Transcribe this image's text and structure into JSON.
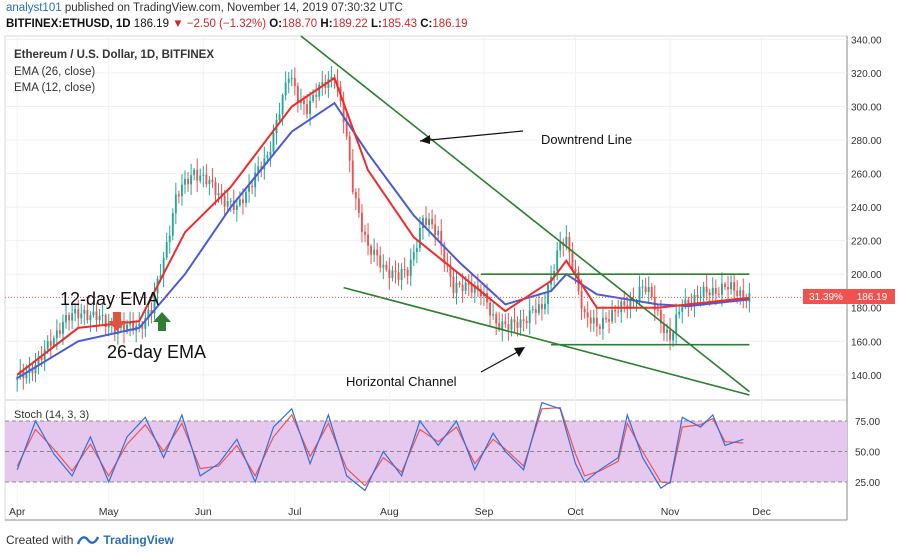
{
  "header": {
    "user": "analyst101",
    "published": "published on TradingView.com, November 14, 2019 07:30:32 UTC",
    "symbol": "BITFINEX:ETHUSD, 1D",
    "last": "186.19",
    "change": "▼ −2.50 (−1.32%)",
    "o_label": "O:",
    "o_value": "188.70",
    "h_label": "H:",
    "h_value": "189.22",
    "l_label": "L:",
    "l_value": "185.43",
    "c_label": "C:",
    "c_value": "186.19"
  },
  "legend": {
    "instrument": "Ethereum / U.S. Dollar, 1D, BITFINEX",
    "ema26": "EMA (26, close)",
    "ema12": "EMA (12, close)"
  },
  "annotations": {
    "downtrend": "Downtrend Line",
    "channel": "Horizontal Channel",
    "ema12": "12-day EMA",
    "ema26": "26-day EMA"
  },
  "price_tags": {
    "percent": "31.39%",
    "price": "186.19"
  },
  "stoch": {
    "label": "Stoch (14, 3, 3)",
    "levels": [
      75,
      50,
      25
    ],
    "tick_labels": [
      "75.00",
      "50.00",
      "25.00"
    ]
  },
  "colors": {
    "up": "#26a69a",
    "down": "#ef5350",
    "ema12": "#ef2b2b",
    "ema26": "#4a5bd4",
    "trend": "#2e7d32",
    "stochK": "#2f6fe0",
    "stochD": "#ef5350",
    "stochBand": "#e6c8ef"
  },
  "footer": {
    "created": "Created with",
    "brand": "TradingView"
  },
  "chart_data": {
    "type": "candlestick",
    "ylim": [
      125,
      342
    ],
    "yticks": [
      140,
      160,
      180,
      200,
      220,
      240,
      260,
      280,
      300,
      320,
      340
    ],
    "ytick_labels": [
      "140.00",
      "160.00",
      "180.00",
      "200.00",
      "220.00",
      "240.00",
      "260.00",
      "280.00",
      "300.00",
      "320.00",
      "340.00"
    ],
    "xticks": [
      "Apr",
      "May",
      "Jun",
      "Jul",
      "Aug",
      "Sep",
      "Oct",
      "Nov",
      "Dec"
    ],
    "xtick_days": [
      0,
      30,
      61,
      91,
      122,
      153,
      183,
      214,
      244
    ],
    "x_domain_days": [
      -4,
      272
    ],
    "close_series": [
      [
        0,
        137
      ],
      [
        8,
        150
      ],
      [
        15,
        172
      ],
      [
        22,
        178
      ],
      [
        30,
        170
      ],
      [
        35,
        167
      ],
      [
        40,
        170
      ],
      [
        44,
        178
      ],
      [
        48,
        210
      ],
      [
        52,
        245
      ],
      [
        58,
        262
      ],
      [
        65,
        250
      ],
      [
        72,
        238
      ],
      [
        78,
        260
      ],
      [
        82,
        268
      ],
      [
        86,
        300
      ],
      [
        89,
        318
      ],
      [
        92,
        305
      ],
      [
        95,
        300
      ],
      [
        100,
        312
      ],
      [
        104,
        320
      ],
      [
        107,
        292
      ],
      [
        110,
        252
      ],
      [
        115,
        215
      ],
      [
        120,
        205
      ],
      [
        125,
        198
      ],
      [
        128,
        202
      ],
      [
        133,
        232
      ],
      [
        138,
        225
      ],
      [
        143,
        190
      ],
      [
        148,
        195
      ],
      [
        152,
        188
      ],
      [
        157,
        172
      ],
      [
        161,
        168
      ],
      [
        165,
        172
      ],
      [
        169,
        178
      ],
      [
        172,
        178
      ],
      [
        175,
        200
      ],
      [
        178,
        218
      ],
      [
        180,
        218
      ],
      [
        183,
        200
      ],
      [
        186,
        175
      ],
      [
        190,
        168
      ],
      [
        193,
        175
      ],
      [
        196,
        177
      ],
      [
        200,
        182
      ],
      [
        205,
        192
      ],
      [
        208,
        186
      ],
      [
        211,
        173
      ],
      [
        214,
        160
      ],
      [
        218,
        183
      ],
      [
        222,
        185
      ],
      [
        227,
        190
      ],
      [
        232,
        192
      ],
      [
        237,
        189
      ],
      [
        240,
        186
      ]
    ],
    "ema12_series": [
      [
        0,
        140
      ],
      [
        20,
        168
      ],
      [
        40,
        172
      ],
      [
        55,
        225
      ],
      [
        70,
        252
      ],
      [
        90,
        300
      ],
      [
        104,
        317
      ],
      [
        115,
        262
      ],
      [
        130,
        222
      ],
      [
        145,
        200
      ],
      [
        160,
        178
      ],
      [
        175,
        196
      ],
      [
        180,
        208
      ],
      [
        190,
        180
      ],
      [
        210,
        180
      ],
      [
        220,
        182
      ],
      [
        240,
        186
      ]
    ],
    "ema26_series": [
      [
        0,
        138
      ],
      [
        20,
        160
      ],
      [
        40,
        168
      ],
      [
        55,
        200
      ],
      [
        70,
        240
      ],
      [
        90,
        285
      ],
      [
        104,
        302
      ],
      [
        115,
        272
      ],
      [
        130,
        235
      ],
      [
        145,
        207
      ],
      [
        160,
        182
      ],
      [
        175,
        190
      ],
      [
        180,
        200
      ],
      [
        190,
        188
      ],
      [
        210,
        182
      ],
      [
        220,
        181
      ],
      [
        240,
        185
      ]
    ],
    "trendlines": [
      {
        "name": "downtrend-upper",
        "from": [
          93,
          342
        ],
        "to": [
          240,
          130
        ]
      },
      {
        "name": "downtrend-lower",
        "from": [
          107,
          192
        ],
        "to": [
          240,
          128
        ]
      },
      {
        "name": "channel-top",
        "from": [
          152,
          200
        ],
        "to": [
          240,
          200
        ]
      },
      {
        "name": "channel-bottom",
        "from": [
          175,
          158
        ],
        "to": [
          240,
          158
        ]
      }
    ],
    "last_price": 186.19,
    "stoch_k": [
      [
        0,
        35
      ],
      [
        6,
        75
      ],
      [
        12,
        48
      ],
      [
        18,
        30
      ],
      [
        24,
        62
      ],
      [
        30,
        25
      ],
      [
        36,
        62
      ],
      [
        42,
        78
      ],
      [
        48,
        45
      ],
      [
        54,
        80
      ],
      [
        60,
        30
      ],
      [
        66,
        40
      ],
      [
        72,
        60
      ],
      [
        78,
        25
      ],
      [
        84,
        70
      ],
      [
        90,
        85
      ],
      [
        96,
        40
      ],
      [
        102,
        80
      ],
      [
        108,
        30
      ],
      [
        114,
        18
      ],
      [
        120,
        50
      ],
      [
        126,
        30
      ],
      [
        132,
        75
      ],
      [
        138,
        55
      ],
      [
        144,
        75
      ],
      [
        150,
        35
      ],
      [
        156,
        65
      ],
      [
        160,
        50
      ],
      [
        166,
        35
      ],
      [
        172,
        90
      ],
      [
        178,
        85
      ],
      [
        183,
        40
      ],
      [
        186,
        25
      ],
      [
        191,
        35
      ],
      [
        197,
        45
      ],
      [
        200,
        80
      ],
      [
        205,
        45
      ],
      [
        211,
        20
      ],
      [
        214,
        25
      ],
      [
        218,
        78
      ],
      [
        224,
        70
      ],
      [
        228,
        80
      ],
      [
        232,
        55
      ],
      [
        238,
        60
      ]
    ],
    "stoch_d": [
      [
        0,
        38
      ],
      [
        6,
        68
      ],
      [
        12,
        52
      ],
      [
        18,
        34
      ],
      [
        24,
        56
      ],
      [
        30,
        30
      ],
      [
        36,
        56
      ],
      [
        42,
        72
      ],
      [
        48,
        50
      ],
      [
        54,
        73
      ],
      [
        60,
        36
      ],
      [
        66,
        38
      ],
      [
        72,
        55
      ],
      [
        78,
        30
      ],
      [
        84,
        62
      ],
      [
        90,
        80
      ],
      [
        96,
        46
      ],
      [
        102,
        73
      ],
      [
        108,
        36
      ],
      [
        114,
        22
      ],
      [
        120,
        45
      ],
      [
        126,
        33
      ],
      [
        132,
        68
      ],
      [
        138,
        58
      ],
      [
        144,
        70
      ],
      [
        150,
        40
      ],
      [
        156,
        60
      ],
      [
        160,
        52
      ],
      [
        166,
        38
      ],
      [
        172,
        85
      ],
      [
        178,
        86
      ],
      [
        183,
        48
      ],
      [
        186,
        30
      ],
      [
        191,
        34
      ],
      [
        197,
        42
      ],
      [
        200,
        73
      ],
      [
        205,
        50
      ],
      [
        211,
        25
      ],
      [
        214,
        24
      ],
      [
        218,
        70
      ],
      [
        224,
        72
      ],
      [
        228,
        77
      ],
      [
        232,
        58
      ],
      [
        238,
        57
      ]
    ]
  }
}
